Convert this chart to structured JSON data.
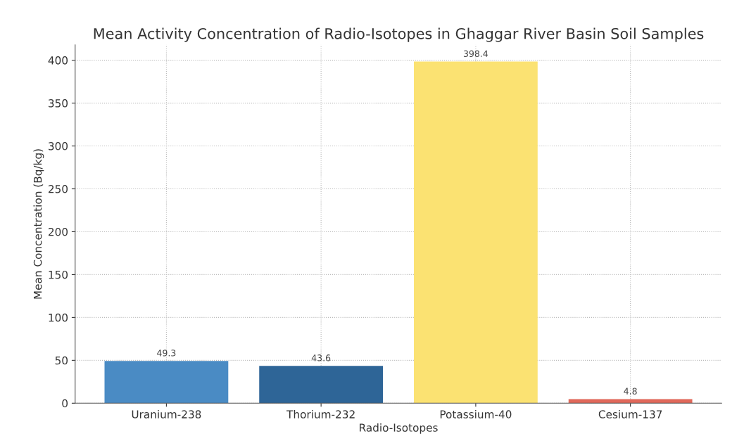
{
  "chart_data": {
    "type": "bar",
    "title": "Mean Activity Concentration of Radio-Isotopes in Ghaggar River Basin Soil Samples",
    "xlabel": "Radio-Isotopes",
    "ylabel": "Mean Concentration (Bq/kg)",
    "categories": [
      "Uranium-238",
      "Thorium-232",
      "Potassium-40",
      "Cesium-137"
    ],
    "values": [
      49.3,
      43.6,
      398.4,
      4.8
    ],
    "colors": [
      "#4a8bc4",
      "#2e6597",
      "#fbe272",
      "#e0685a"
    ],
    "ylim": [
      0,
      418
    ],
    "yticks": [
      0,
      50,
      100,
      150,
      200,
      250,
      300,
      350,
      400
    ],
    "grid": true,
    "data_labels": true
  }
}
